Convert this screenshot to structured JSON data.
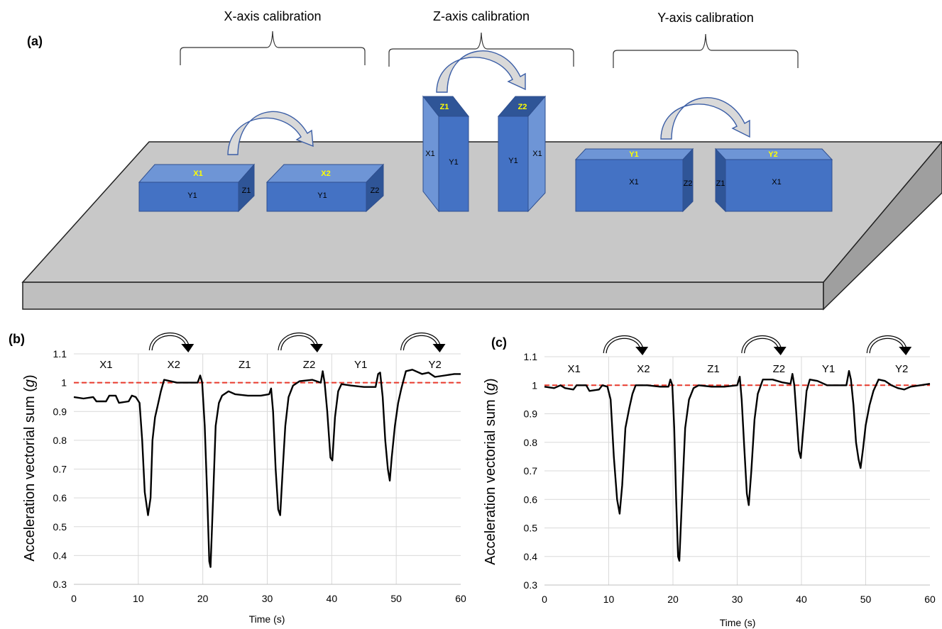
{
  "panel_a": {
    "label": "(a)",
    "sections": [
      {
        "title": "X-axis calibration"
      },
      {
        "title": "Z-axis calibration"
      },
      {
        "title": "Y-axis calibration"
      }
    ],
    "blocks": {
      "x1": {
        "top": "X1",
        "front": "Y1",
        "side": "Z1"
      },
      "x2": {
        "top": "X2",
        "front": "Y1",
        "side": "Z2"
      },
      "z1": {
        "top": "Z1",
        "front": "Y1",
        "side": "X1"
      },
      "z2": {
        "top": "Z2",
        "front": "Y1",
        "side": "X1"
      },
      "y1": {
        "top": "Y1",
        "front": "X1",
        "side": "Z2"
      },
      "y2": {
        "top": "Y2",
        "front": "X1",
        "side": "Z1"
      }
    },
    "colors": {
      "block_front": "#4472C4",
      "block_top": "#6E95D6",
      "block_side": "#2F5597",
      "top_label": "#FFFF00",
      "table_top": "#C8C8C8",
      "table_front": "#BFBFBF",
      "table_side": "#A0A0A0"
    }
  },
  "chart_data": [
    {
      "type": "line",
      "panel": "(b)",
      "xlabel": "Time (s)",
      "ylabel_main": "Acceleration vectorial sum (",
      "ylabel_unit": "g",
      "ylabel_close": ")",
      "xlim": [
        0,
        60
      ],
      "ylim": [
        0.3,
        1.1
      ],
      "xticks": [
        0,
        10,
        20,
        30,
        40,
        50,
        60
      ],
      "yticks": [
        0.3,
        0.4,
        0.5,
        0.6,
        0.7,
        0.8,
        0.9,
        1,
        1.1
      ],
      "ytick_labels": [
        "0.3",
        "0.4",
        "0.5",
        "0.6",
        "0.7",
        "0.8",
        "0.9",
        "1",
        "1.1"
      ],
      "vertical_grid_x": [
        10,
        20,
        30,
        40,
        50
      ],
      "reference_line": {
        "y": 1.0,
        "color": "#E8382B"
      },
      "segment_labels": [
        {
          "text": "X1",
          "x": 5
        },
        {
          "text": "X2",
          "x": 15.5
        },
        {
          "text": "Z1",
          "x": 26.5
        },
        {
          "text": "Z2",
          "x": 36.5
        },
        {
          "text": "Y1",
          "x": 44.5
        },
        {
          "text": "Y2",
          "x": 56
        }
      ],
      "arrows_at_x": [
        15,
        35,
        54
      ],
      "series": [
        {
          "color": "#000000",
          "points": [
            [
              0,
              0.95
            ],
            [
              1.5,
              0.945
            ],
            [
              3,
              0.95
            ],
            [
              3.5,
              0.935
            ],
            [
              5,
              0.935
            ],
            [
              5.5,
              0.955
            ],
            [
              6.5,
              0.955
            ],
            [
              7,
              0.93
            ],
            [
              8.5,
              0.935
            ],
            [
              9,
              0.955
            ],
            [
              9.6,
              0.95
            ],
            [
              10.2,
              0.93
            ],
            [
              10.6,
              0.8
            ],
            [
              11,
              0.62
            ],
            [
              11.5,
              0.54
            ],
            [
              11.9,
              0.6
            ],
            [
              12.2,
              0.8
            ],
            [
              12.6,
              0.88
            ],
            [
              13,
              0.92
            ],
            [
              13.5,
              0.97
            ],
            [
              14,
              1.01
            ],
            [
              16,
              1.0
            ],
            [
              18,
              1.0
            ],
            [
              19.2,
              1.0
            ],
            [
              19.6,
              1.025
            ],
            [
              19.9,
              1.0
            ],
            [
              20.3,
              0.85
            ],
            [
              20.7,
              0.6
            ],
            [
              21,
              0.38
            ],
            [
              21.2,
              0.36
            ],
            [
              21.6,
              0.6
            ],
            [
              22,
              0.85
            ],
            [
              22.5,
              0.93
            ],
            [
              23,
              0.955
            ],
            [
              24,
              0.97
            ],
            [
              25,
              0.96
            ],
            [
              27,
              0.955
            ],
            [
              29,
              0.955
            ],
            [
              30.3,
              0.96
            ],
            [
              30.6,
              0.98
            ],
            [
              30.9,
              0.9
            ],
            [
              31.3,
              0.7
            ],
            [
              31.7,
              0.56
            ],
            [
              32,
              0.54
            ],
            [
              32.4,
              0.7
            ],
            [
              32.8,
              0.85
            ],
            [
              33.3,
              0.95
            ],
            [
              34,
              0.99
            ],
            [
              35,
              1.005
            ],
            [
              37,
              1.01
            ],
            [
              38.3,
              1.0
            ],
            [
              38.6,
              1.04
            ],
            [
              38.9,
              1.0
            ],
            [
              39.3,
              0.9
            ],
            [
              39.8,
              0.74
            ],
            [
              40.1,
              0.73
            ],
            [
              40.5,
              0.88
            ],
            [
              41,
              0.97
            ],
            [
              41.5,
              0.995
            ],
            [
              43,
              0.99
            ],
            [
              45,
              0.985
            ],
            [
              46.8,
              0.985
            ],
            [
              47.2,
              1.03
            ],
            [
              47.5,
              1.035
            ],
            [
              47.9,
              0.95
            ],
            [
              48.3,
              0.8
            ],
            [
              48.7,
              0.7
            ],
            [
              49,
              0.66
            ],
            [
              49.3,
              0.74
            ],
            [
              49.8,
              0.85
            ],
            [
              50.3,
              0.93
            ],
            [
              50.8,
              0.98
            ],
            [
              51.5,
              1.04
            ],
            [
              52.5,
              1.045
            ],
            [
              54,
              1.03
            ],
            [
              55,
              1.035
            ],
            [
              56,
              1.02
            ],
            [
              57.5,
              1.025
            ],
            [
              59,
              1.03
            ],
            [
              60,
              1.03
            ]
          ]
        }
      ]
    },
    {
      "type": "line",
      "panel": "(c)",
      "xlabel": "Time (s)",
      "ylabel_main": "Acceleration vectorial sum (",
      "ylabel_unit": "g",
      "ylabel_close": ")",
      "xlim": [
        0,
        60
      ],
      "ylim": [
        0.3,
        1.1
      ],
      "xticks": [
        0,
        10,
        20,
        30,
        40,
        50,
        60
      ],
      "yticks": [
        0.3,
        0.4,
        0.5,
        0.6,
        0.7,
        0.8,
        0.9,
        1,
        1.1
      ],
      "ytick_labels": [
        "0.3",
        "0.4",
        "0.5",
        "0.6",
        "0.7",
        "0.8",
        "0.9",
        "1",
        "1.1"
      ],
      "vertical_grid_x": [
        10,
        20,
        30,
        40,
        50
      ],
      "reference_line": {
        "y": 1.0,
        "color": "#E8382B"
      },
      "segment_labels": [
        {
          "text": "X1",
          "x": 4.6
        },
        {
          "text": "X2",
          "x": 15.4
        },
        {
          "text": "Z1",
          "x": 26.3
        },
        {
          "text": "Z2",
          "x": 36.5
        },
        {
          "text": "Y1",
          "x": 44.2
        },
        {
          "text": "Y2",
          "x": 55.6
        }
      ],
      "arrows_at_x": [
        12.5,
        34,
        53.5
      ],
      "series": [
        {
          "color": "#000000",
          "points": [
            [
              0,
              0.995
            ],
            [
              1.5,
              0.99
            ],
            [
              2.5,
              1.0
            ],
            [
              3.2,
              0.99
            ],
            [
              4.5,
              0.985
            ],
            [
              5,
              1.0
            ],
            [
              6.5,
              1.0
            ],
            [
              7,
              0.98
            ],
            [
              8.5,
              0.985
            ],
            [
              9,
              1.0
            ],
            [
              9.8,
              0.995
            ],
            [
              10.3,
              0.95
            ],
            [
              10.8,
              0.75
            ],
            [
              11.3,
              0.6
            ],
            [
              11.7,
              0.55
            ],
            [
              12.1,
              0.65
            ],
            [
              12.6,
              0.85
            ],
            [
              13.2,
              0.92
            ],
            [
              13.7,
              0.97
            ],
            [
              14.2,
              1.0
            ],
            [
              16,
              1.0
            ],
            [
              18,
              0.995
            ],
            [
              19.3,
              0.995
            ],
            [
              19.6,
              1.02
            ],
            [
              19.9,
              1.0
            ],
            [
              20.2,
              0.85
            ],
            [
              20.5,
              0.6
            ],
            [
              20.8,
              0.4
            ],
            [
              21,
              0.385
            ],
            [
              21.4,
              0.6
            ],
            [
              21.9,
              0.85
            ],
            [
              22.5,
              0.95
            ],
            [
              23.2,
              0.99
            ],
            [
              24,
              1.0
            ],
            [
              26,
              0.995
            ],
            [
              28,
              0.995
            ],
            [
              30,
              1.0
            ],
            [
              30.4,
              1.03
            ],
            [
              30.7,
              0.95
            ],
            [
              31.1,
              0.78
            ],
            [
              31.5,
              0.62
            ],
            [
              31.8,
              0.58
            ],
            [
              32.2,
              0.7
            ],
            [
              32.7,
              0.88
            ],
            [
              33.2,
              0.97
            ],
            [
              34,
              1.02
            ],
            [
              35.5,
              1.02
            ],
            [
              37,
              1.01
            ],
            [
              38.3,
              1.005
            ],
            [
              38.6,
              1.04
            ],
            [
              38.9,
              1.0
            ],
            [
              39.2,
              0.9
            ],
            [
              39.6,
              0.77
            ],
            [
              39.9,
              0.745
            ],
            [
              40.3,
              0.85
            ],
            [
              40.8,
              0.98
            ],
            [
              41.3,
              1.02
            ],
            [
              42.5,
              1.015
            ],
            [
              44,
              1.0
            ],
            [
              46,
              1.0
            ],
            [
              47,
              1.0
            ],
            [
              47.4,
              1.05
            ],
            [
              47.7,
              1.02
            ],
            [
              48.1,
              0.93
            ],
            [
              48.5,
              0.8
            ],
            [
              48.9,
              0.74
            ],
            [
              49.2,
              0.71
            ],
            [
              49.6,
              0.78
            ],
            [
              50,
              0.86
            ],
            [
              50.6,
              0.93
            ],
            [
              51.2,
              0.98
            ],
            [
              52,
              1.02
            ],
            [
              53,
              1.015
            ],
            [
              54,
              1.0
            ],
            [
              55,
              0.99
            ],
            [
              56,
              0.985
            ],
            [
              57,
              0.995
            ],
            [
              58.5,
              1.0
            ],
            [
              60,
              1.005
            ]
          ]
        }
      ]
    }
  ]
}
